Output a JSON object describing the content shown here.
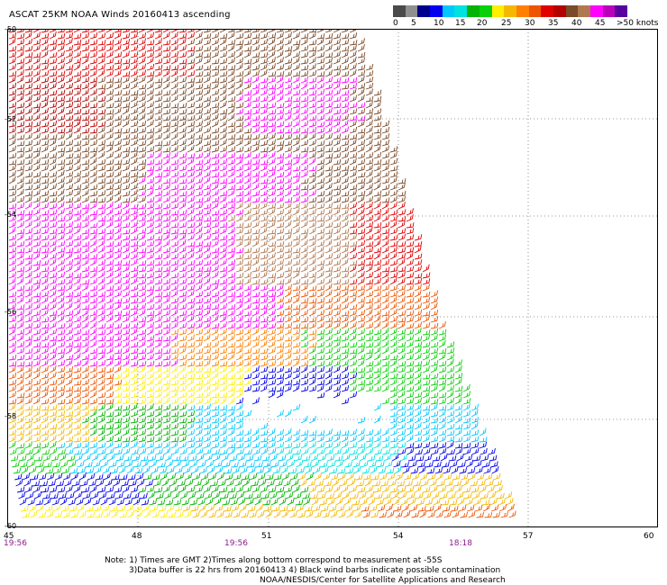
{
  "title": "ASCAT 25KM NOAA Winds 20160413 ascending",
  "colorbar": {
    "colors": [
      "#4a4a4a",
      "#8f8f8f",
      "#00008f",
      "#0000ee",
      "#00c8ff",
      "#00e1e1",
      "#00b400",
      "#0ad00a",
      "#ffee00",
      "#f5b800",
      "#ff8000",
      "#ee5500",
      "#e00000",
      "#b40000",
      "#7a4a2a",
      "#b07850",
      "#ff00ff",
      "#bb00bb",
      "#5a00a0"
    ],
    "labels": [
      "0",
      "5",
      "10",
      "15",
      "20",
      "25",
      "30",
      "35",
      "40",
      "45",
      ">50 knots"
    ]
  },
  "axes": {
    "x_ticks": [
      "45",
      "48",
      "51",
      "54",
      "57",
      "60"
    ],
    "y_ticks": [
      "-50",
      "-52",
      "-54",
      "-56",
      "-58",
      "-60"
    ]
  },
  "times": [
    "19:56",
    "19:56",
    "18:18"
  ],
  "notes": [
    "Note: 1) Times are GMT 2)Times along bottom correspond to measurement at -55S",
    "3)Data buffer is 22 hrs from 20160413 4) Black wind barbs indicate possible contamination",
    "NOAA/NESDIS/Center for Satellite Applications and Research"
  ]
}
